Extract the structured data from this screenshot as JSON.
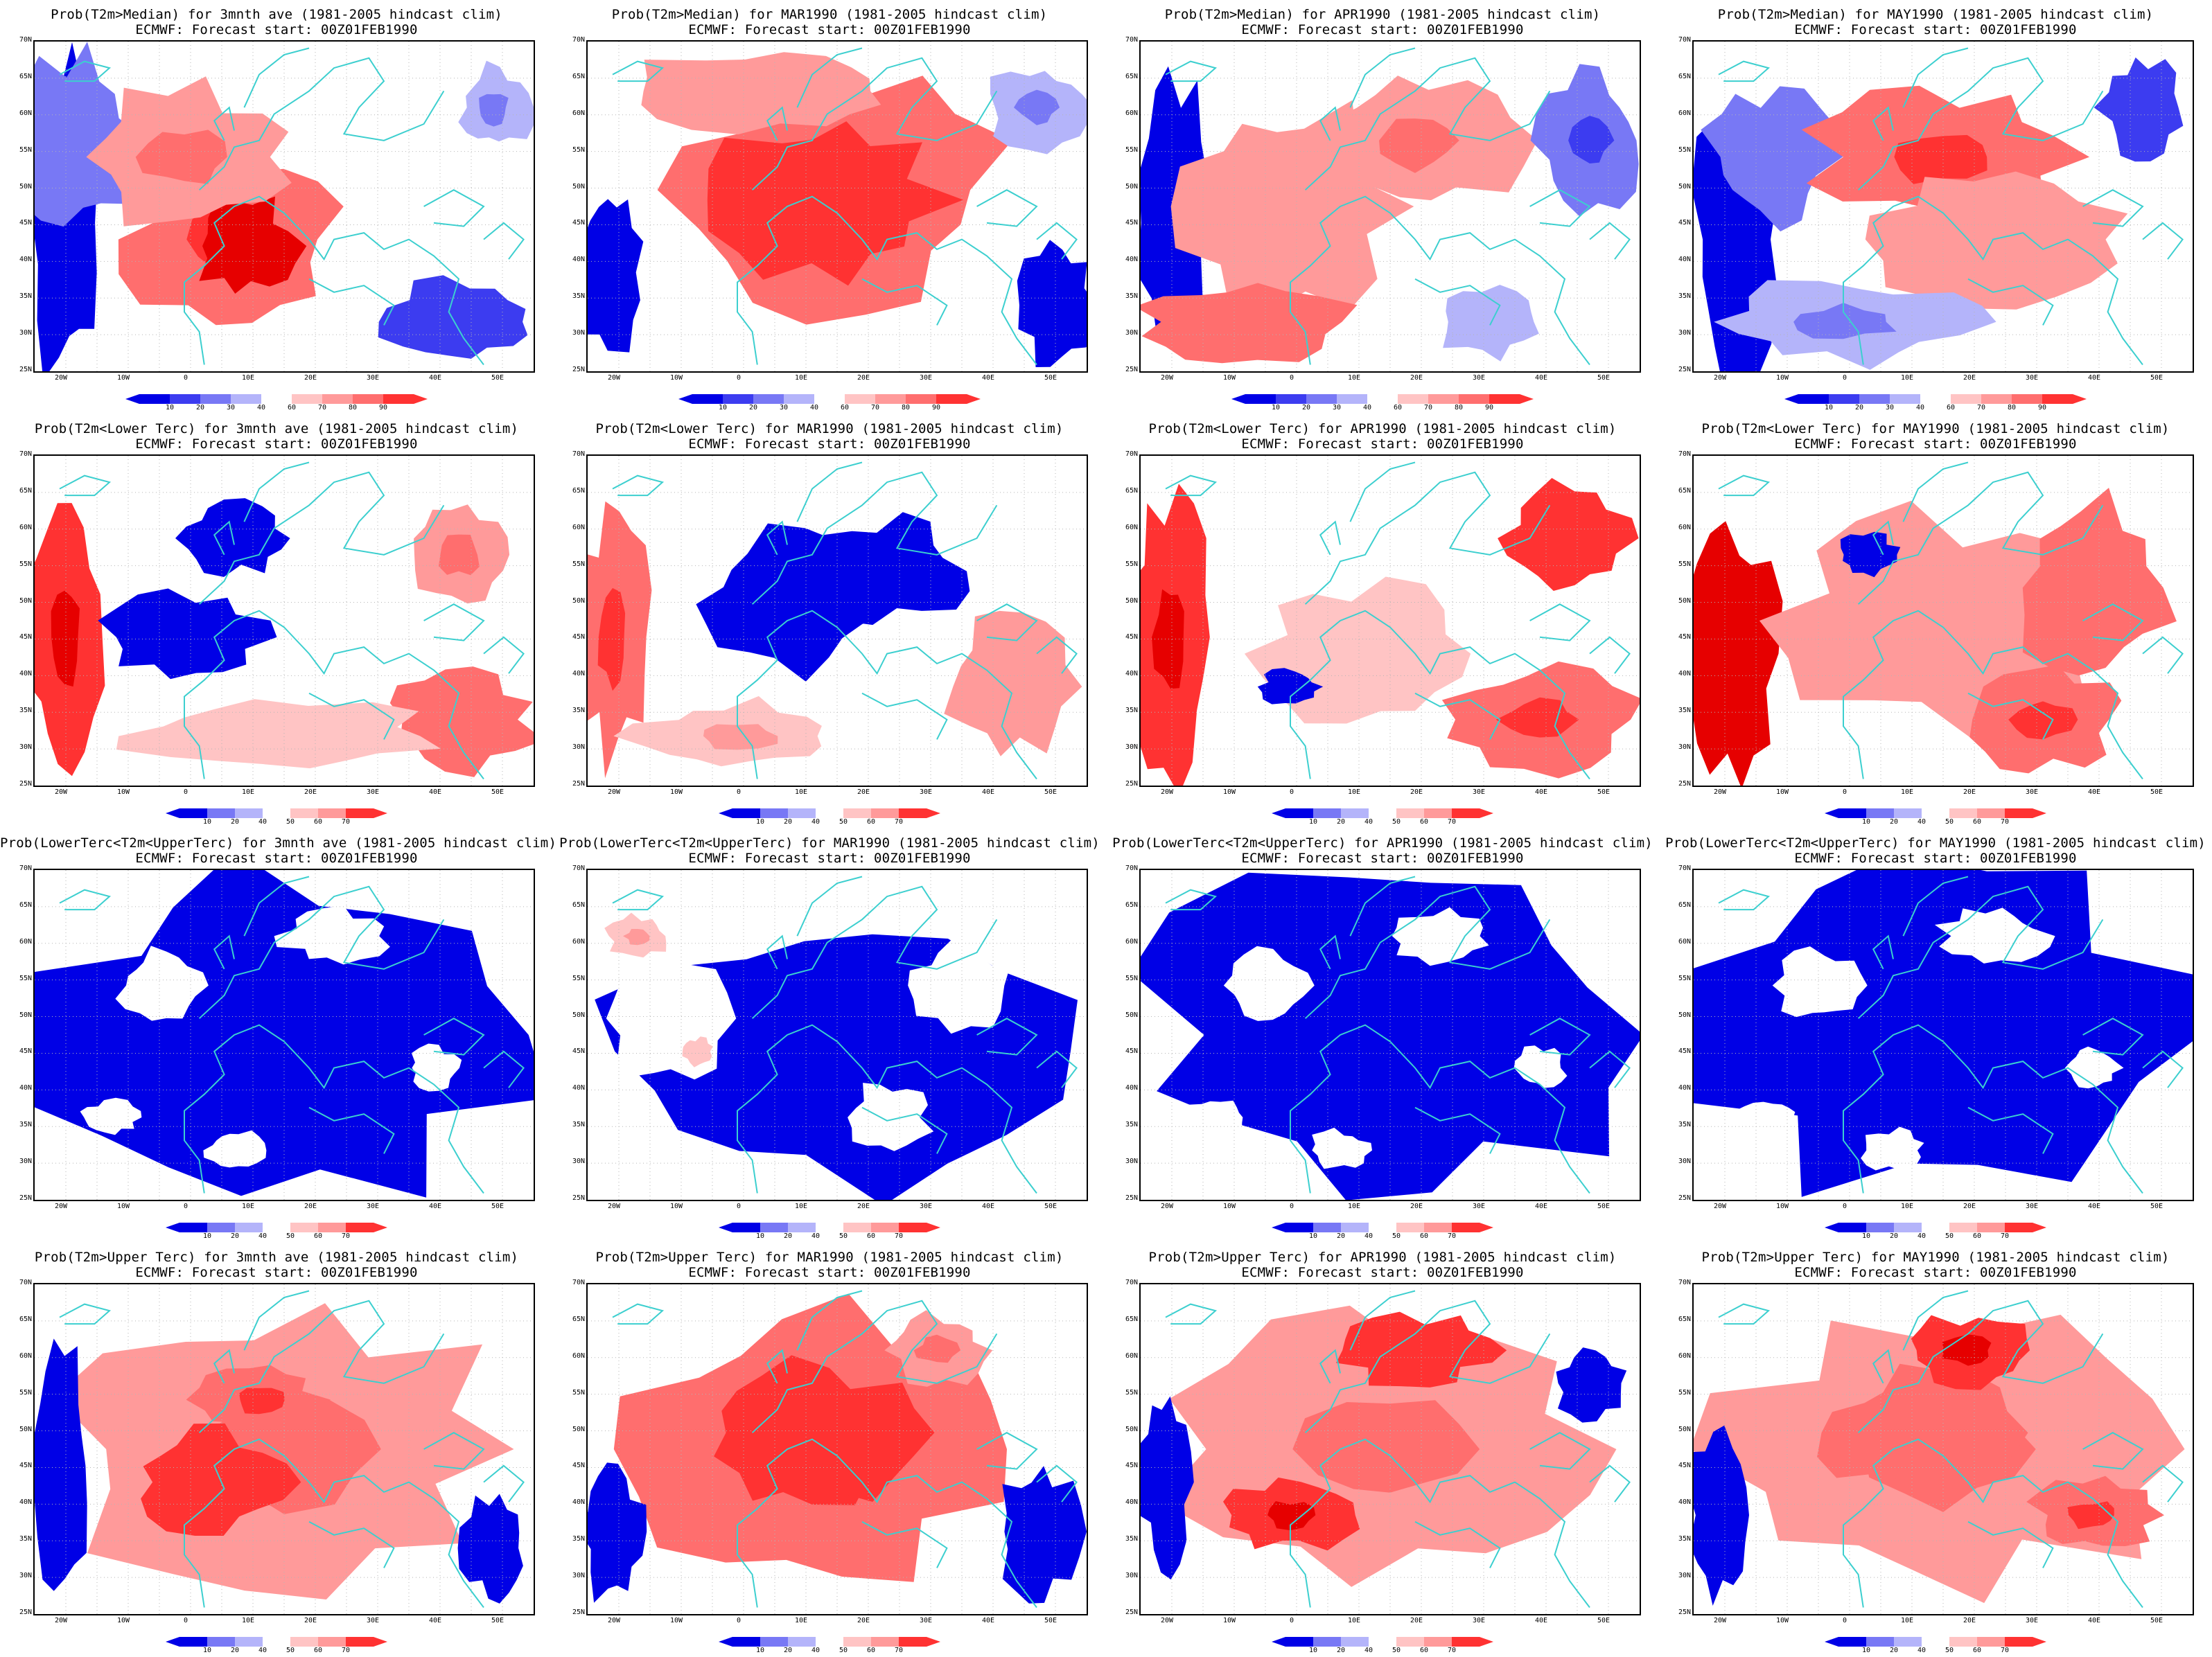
{
  "colors": {
    "coast": "#3ccfcf",
    "grid": "#b5b5b5",
    "blue_scale": [
      "#0000e6",
      "#3c3cf0",
      "#7878f5",
      "#b4b4fa"
    ],
    "red_scale": [
      "#ffc4c4",
      "#ff9a9a",
      "#ff6e6e",
      "#ff3232",
      "#e60000"
    ]
  },
  "colorbars": {
    "median": {
      "levels": [
        "10",
        "20",
        "30",
        "40",
        "60",
        "70",
        "80",
        "90"
      ]
    },
    "tercile": {
      "levels": [
        "10",
        "20",
        "40",
        "50",
        "60",
        "70"
      ]
    }
  },
  "axes": {
    "lat_labels": [
      "70N",
      "65N",
      "60N",
      "55N",
      "50N",
      "45N",
      "40N",
      "35N",
      "30N",
      "25N"
    ],
    "lon_labels": [
      "20W",
      "10W",
      "0",
      "10E",
      "20E",
      "30E",
      "40E",
      "50E"
    ]
  },
  "panels": [
    {
      "title": "Prob(T2m>Median) for 3mnth ave (1981-2005 hindcast clim)",
      "subtitle": "ECMWF: Forecast start: 00Z01FEB1990",
      "scale": "median",
      "pattern": "median_3m"
    },
    {
      "title": "Prob(T2m>Median) for MAR1990 (1981-2005 hindcast clim)",
      "subtitle": "ECMWF: Forecast start: 00Z01FEB1990",
      "scale": "median",
      "pattern": "median_mar"
    },
    {
      "title": "Prob(T2m>Median) for APR1990 (1981-2005 hindcast clim)",
      "subtitle": "ECMWF: Forecast start: 00Z01FEB1990",
      "scale": "median",
      "pattern": "median_apr"
    },
    {
      "title": "Prob(T2m>Median) for MAY1990 (1981-2005 hindcast clim)",
      "subtitle": "ECMWF: Forecast start: 00Z01FEB1990",
      "scale": "median",
      "pattern": "median_may"
    },
    {
      "title": "Prob(T2m<Lower Terc) for 3mnth ave (1981-2005 hindcast clim)",
      "subtitle": "ECMWF: Forecast start: 00Z01FEB1990",
      "scale": "tercile",
      "pattern": "lower_3m"
    },
    {
      "title": "Prob(T2m<Lower Terc) for MAR1990 (1981-2005 hindcast clim)",
      "subtitle": "ECMWF: Forecast start: 00Z01FEB1990",
      "scale": "tercile",
      "pattern": "lower_mar"
    },
    {
      "title": "Prob(T2m<Lower Terc) for APR1990 (1981-2005 hindcast clim)",
      "subtitle": "ECMWF: Forecast start: 00Z01FEB1990",
      "scale": "tercile",
      "pattern": "lower_apr"
    },
    {
      "title": "Prob(T2m<Lower Terc) for MAY1990 (1981-2005 hindcast clim)",
      "subtitle": "ECMWF: Forecast start: 00Z01FEB1990",
      "scale": "tercile",
      "pattern": "lower_may"
    },
    {
      "title": "Prob(LowerTerc<T2m<UpperTerc) for 3mnth ave (1981-2005 hindcast clim)",
      "subtitle": "ECMWF: Forecast start: 00Z01FEB1990",
      "scale": "tercile",
      "pattern": "middle"
    },
    {
      "title": "Prob(LowerTerc<T2m<UpperTerc) for MAR1990 (1981-2005 hindcast clim)",
      "subtitle": "ECMWF: Forecast start: 00Z01FEB1990",
      "scale": "tercile",
      "pattern": "middle_mar"
    },
    {
      "title": "Prob(LowerTerc<T2m<UpperTerc) for APR1990 (1981-2005 hindcast clim)",
      "subtitle": "ECMWF: Forecast start: 00Z01FEB1990",
      "scale": "tercile",
      "pattern": "middle"
    },
    {
      "title": "Prob(LowerTerc<T2m<UpperTerc) for MAY1990 (1981-2005 hindcast clim)",
      "subtitle": "ECMWF: Forecast start: 00Z01FEB1990",
      "scale": "tercile",
      "pattern": "middle"
    },
    {
      "title": "Prob(T2m>Upper Terc) for 3mnth ave (1981-2005 hindcast clim)",
      "subtitle": "ECMWF: Forecast start: 00Z01FEB1990",
      "scale": "tercile",
      "pattern": "upper_3m"
    },
    {
      "title": "Prob(T2m>Upper Terc) for MAR1990 (1981-2005 hindcast clim)",
      "subtitle": "ECMWF: Forecast start: 00Z01FEB1990",
      "scale": "tercile",
      "pattern": "upper_mar"
    },
    {
      "title": "Prob(T2m>Upper Terc) for APR1990 (1981-2005 hindcast clim)",
      "subtitle": "ECMWF: Forecast start: 00Z01FEB1990",
      "scale": "tercile",
      "pattern": "upper_apr"
    },
    {
      "title": "Prob(T2m>Upper Terc) for MAY1990 (1981-2005 hindcast clim)",
      "subtitle": "ECMWF: Forecast start: 00Z01FEB1990",
      "scale": "tercile",
      "pattern": "upper_may"
    }
  ]
}
